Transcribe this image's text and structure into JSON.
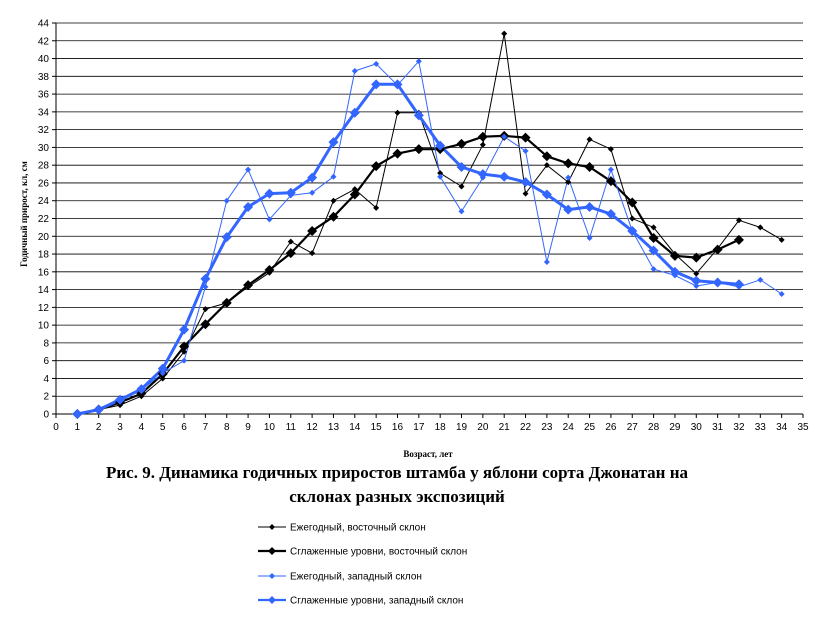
{
  "chart_data": {
    "type": "line",
    "title": "",
    "caption_lines": [
      "Рис. 9. Динамика годичных приростов штамба у яблони сорта Джонатан на",
      "склонах разных экспозиций"
    ],
    "xlabel": "Возраст, лет",
    "ylabel": "Годичный прирост, кл, см",
    "xlim": [
      0,
      35
    ],
    "ylim": [
      0,
      44
    ],
    "xticks": [
      0,
      1,
      2,
      3,
      4,
      5,
      6,
      7,
      8,
      9,
      10,
      11,
      12,
      13,
      14,
      15,
      16,
      17,
      18,
      19,
      20,
      21,
      22,
      23,
      24,
      25,
      26,
      27,
      28,
      29,
      30,
      31,
      32,
      33,
      34,
      35
    ],
    "yticks": [
      0,
      2,
      4,
      6,
      8,
      10,
      12,
      14,
      16,
      18,
      20,
      22,
      24,
      26,
      28,
      30,
      32,
      34,
      36,
      38,
      40,
      42,
      44
    ],
    "grid": "horizontal",
    "legend_position": "bottom",
    "series": [
      {
        "name": "Ежегодный, восточный склон",
        "color": "#000000",
        "style": "thin",
        "x": [
          1,
          2,
          3,
          4,
          5,
          6,
          7,
          8,
          9,
          10,
          11,
          12,
          13,
          14,
          15,
          16,
          17,
          18,
          19,
          20,
          21,
          22,
          23,
          24,
          25,
          26,
          27,
          28,
          29,
          30,
          31,
          32,
          33,
          34
        ],
        "values": [
          0,
          0.5,
          1,
          2,
          4,
          7,
          11.8,
          12.5,
          14.3,
          15.9,
          19.4,
          18.1,
          24,
          25.3,
          23.2,
          33.9,
          33.9,
          27.1,
          25.6,
          30.3,
          42.8,
          24.8,
          28,
          26.1,
          30.9,
          29.8,
          22,
          21,
          18,
          15.8,
          18.6,
          21.8,
          21,
          19.6
        ]
      },
      {
        "name": "Сглаженные уровни, восточный склон",
        "color": "#000000",
        "style": "thick",
        "x": [
          1,
          2,
          3,
          4,
          5,
          6,
          7,
          8,
          9,
          10,
          11,
          12,
          13,
          14,
          15,
          16,
          17,
          18,
          19,
          20,
          21,
          22,
          23,
          24,
          25,
          26,
          27,
          28,
          29,
          30,
          31,
          32
        ],
        "values": [
          0,
          0.5,
          1.3,
          2.3,
          4.5,
          7.6,
          10.1,
          12.5,
          14.5,
          16.2,
          18.1,
          20.6,
          22.2,
          24.7,
          27.9,
          29.3,
          29.8,
          29.8,
          30.4,
          31.2,
          31.3,
          31.1,
          29,
          28.2,
          27.8,
          26.2,
          23.8,
          19.8,
          17.8,
          17.6,
          18.5,
          19.6
        ]
      },
      {
        "name": "Ежегодный, западный склон",
        "color": "#3366ff",
        "style": "thin",
        "x": [
          1,
          2,
          3,
          4,
          5,
          6,
          7,
          8,
          9,
          10,
          11,
          12,
          13,
          14,
          15,
          16,
          17,
          18,
          19,
          20,
          21,
          22,
          23,
          24,
          25,
          26,
          27,
          28,
          29,
          30,
          31,
          32,
          33,
          34
        ],
        "values": [
          0,
          0.5,
          1.8,
          2.7,
          4.6,
          6,
          14.3,
          24,
          27.5,
          21.9,
          24.6,
          24.9,
          26.7,
          38.6,
          39.4,
          37,
          39.7,
          26.7,
          22.8,
          26.6,
          31.2,
          29.6,
          17.1,
          26.6,
          19.8,
          27.5,
          20.6,
          16.3,
          15.6,
          14.4,
          14.8,
          14.3,
          15.1,
          13.5
        ]
      },
      {
        "name": "Сглаженные уровни, западный склон",
        "color": "#3366ff",
        "style": "thick",
        "x": [
          1,
          2,
          3,
          4,
          5,
          6,
          7,
          8,
          9,
          10,
          11,
          12,
          13,
          14,
          15,
          16,
          17,
          18,
          19,
          20,
          21,
          22,
          23,
          24,
          25,
          26,
          27,
          28,
          29,
          30,
          31,
          32
        ],
        "values": [
          0,
          0.5,
          1.6,
          2.8,
          5.1,
          9.5,
          15.2,
          19.9,
          23.3,
          24.8,
          24.9,
          26.6,
          30.6,
          33.9,
          37.1,
          37.1,
          33.6,
          30.2,
          27.8,
          27,
          26.7,
          26.1,
          24.7,
          23,
          23.3,
          22.5,
          20.6,
          18.4,
          16,
          15,
          14.8,
          14.6
        ]
      }
    ]
  }
}
